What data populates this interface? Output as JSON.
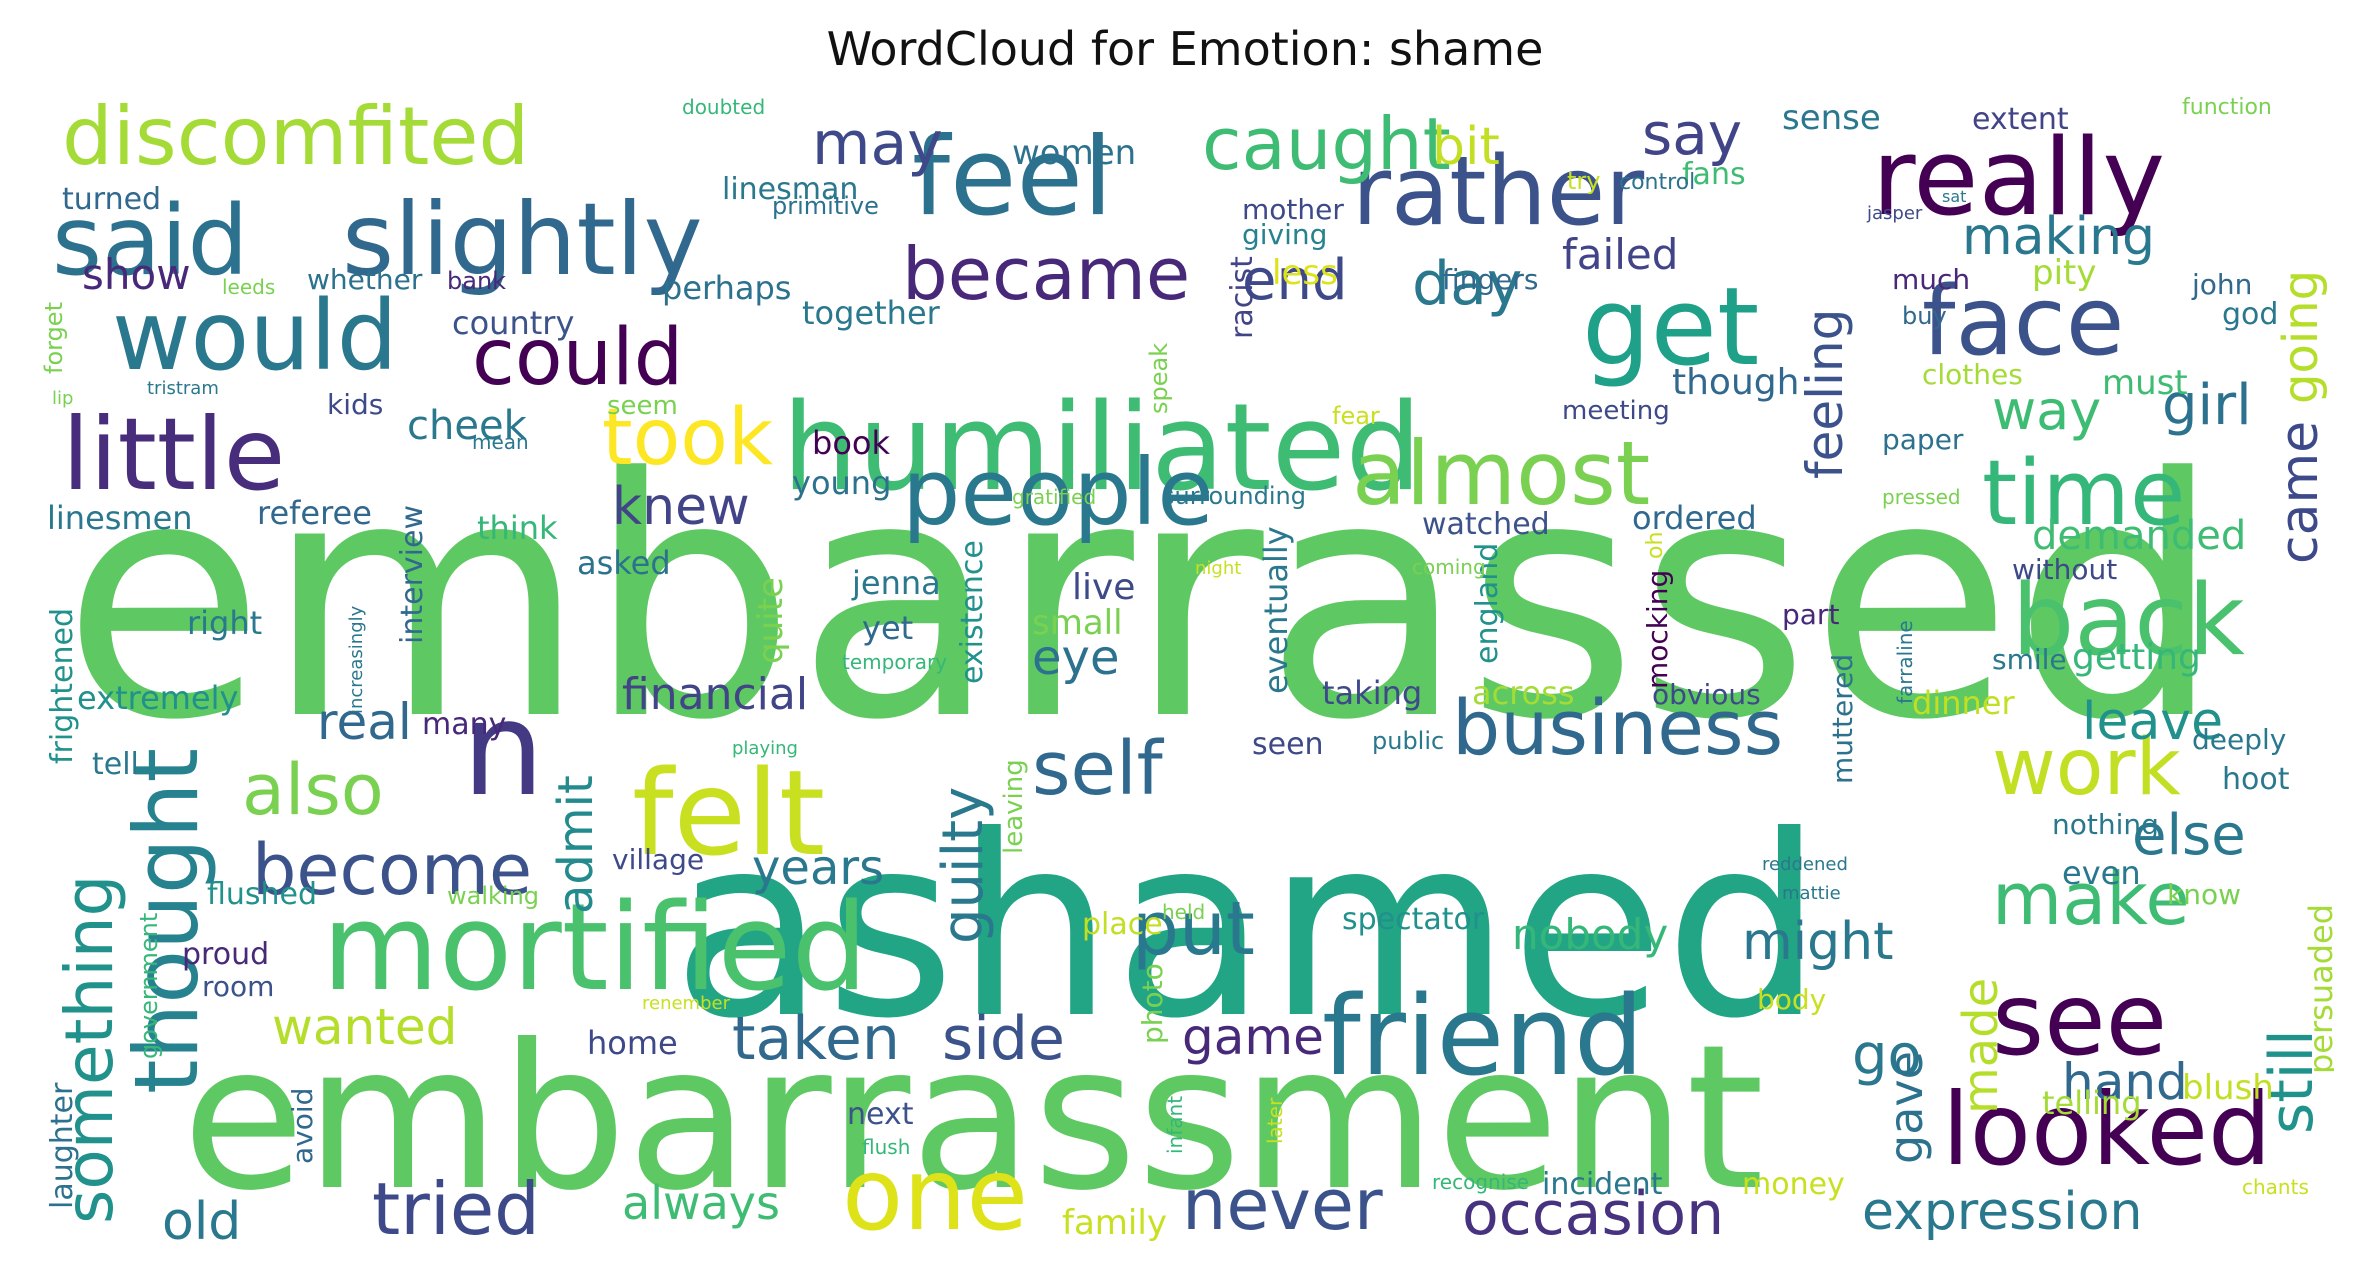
{
  "title": "WordCloud for Emotion: shame",
  "palette": "viridis",
  "words": [
    {
      "text": "embarrassed",
      "color": "#5ec962"
    },
    {
      "text": "ashamed",
      "color": "#21a585"
    },
    {
      "text": "embarrassment",
      "color": "#5ec962"
    },
    {
      "text": "humiliated",
      "color": "#3fbc73"
    },
    {
      "text": "mortified",
      "color": "#4ac16d"
    },
    {
      "text": "felt",
      "color": "#c8e020"
    },
    {
      "text": "friend",
      "color": "#2a788e"
    },
    {
      "text": "slightly",
      "color": "#31688e"
    },
    {
      "text": "feel",
      "color": "#2c728e"
    },
    {
      "text": "really",
      "color": "#440154"
    },
    {
      "text": "said",
      "color": "#2c728e"
    },
    {
      "text": "rather",
      "color": "#3b528b"
    },
    {
      "text": "discomfited",
      "color": "#a5db36"
    },
    {
      "text": "would",
      "color": "#2a788e"
    },
    {
      "text": "get",
      "color": "#1fa088"
    },
    {
      "text": "face",
      "color": "#3b528b"
    },
    {
      "text": "people",
      "color": "#2a788e"
    },
    {
      "text": "little",
      "color": "#472d7b"
    },
    {
      "text": "almost",
      "color": "#7ad151"
    },
    {
      "text": "time",
      "color": "#35b779"
    },
    {
      "text": "back",
      "color": "#4ac16d"
    },
    {
      "text": "one",
      "color": "#dde318"
    },
    {
      "text": "n",
      "color": "#443983"
    },
    {
      "text": "see",
      "color": "#440154"
    },
    {
      "text": "looked",
      "color": "#440154"
    },
    {
      "text": "business",
      "color": "#31688e"
    },
    {
      "text": "thought",
      "color": "#26828e"
    },
    {
      "text": "could",
      "color": "#440154"
    },
    {
      "text": "took",
      "color": "#fde725"
    },
    {
      "text": "became",
      "color": "#482878"
    },
    {
      "text": "caught",
      "color": "#3fbc73"
    },
    {
      "text": "self",
      "color": "#31688e"
    },
    {
      "text": "work",
      "color": "#c2df23"
    },
    {
      "text": "put",
      "color": "#2a788e"
    },
    {
      "text": "make",
      "color": "#3fbc73"
    },
    {
      "text": "tried",
      "color": "#3e4989"
    },
    {
      "text": "never",
      "color": "#3b528b"
    },
    {
      "text": "become",
      "color": "#3b528b"
    },
    {
      "text": "something",
      "color": "#21918c"
    },
    {
      "text": "also",
      "color": "#7ad151"
    },
    {
      "text": "feeling",
      "color": "#3b528b"
    },
    {
      "text": "occasion",
      "color": "#46327e"
    },
    {
      "text": "taken",
      "color": "#31688e"
    },
    {
      "text": "side",
      "color": "#3b528b"
    },
    {
      "text": "expression",
      "color": "#2a788e"
    },
    {
      "text": "still",
      "color": "#21918c"
    },
    {
      "text": "may",
      "color": "#3e4989"
    },
    {
      "text": "say",
      "color": "#414487"
    },
    {
      "text": "day",
      "color": "#2a788e"
    },
    {
      "text": "end",
      "color": "#3e4989"
    },
    {
      "text": "making",
      "color": "#2a788e"
    },
    {
      "text": "knew",
      "color": "#414487"
    },
    {
      "text": "girl",
      "color": "#2c728e"
    },
    {
      "text": "way",
      "color": "#3fbc73"
    },
    {
      "text": "came",
      "color": "#3e4989"
    },
    {
      "text": "going",
      "color": "#b5de2b"
    },
    {
      "text": "bit",
      "color": "#c2df23"
    },
    {
      "text": "show",
      "color": "#482878"
    },
    {
      "text": "real",
      "color": "#31688e"
    },
    {
      "text": "guilty",
      "color": "#2a788e"
    },
    {
      "text": "admit",
      "color": "#238a8d"
    },
    {
      "text": "eye",
      "color": "#2c728e"
    },
    {
      "text": "else",
      "color": "#2a788e"
    },
    {
      "text": "leave",
      "color": "#21918c"
    },
    {
      "text": "might",
      "color": "#2a788e"
    },
    {
      "text": "go",
      "color": "#2a788e"
    },
    {
      "text": "hand",
      "color": "#31688e"
    },
    {
      "text": "made",
      "color": "#b5de2b"
    },
    {
      "text": "gave",
      "color": "#2c728e"
    },
    {
      "text": "game",
      "color": "#482878"
    },
    {
      "text": "old",
      "color": "#2a788e"
    },
    {
      "text": "always",
      "color": "#3fbc73"
    },
    {
      "text": "years",
      "color": "#2a788e"
    },
    {
      "text": "wanted",
      "color": "#b5de2b"
    },
    {
      "text": "financial",
      "color": "#414487"
    },
    {
      "text": "failed",
      "color": "#414487"
    },
    {
      "text": "cheek",
      "color": "#2a788e"
    },
    {
      "text": "nobody",
      "color": "#35b779"
    },
    {
      "text": "demanded",
      "color": "#3fbc73"
    },
    {
      "text": "women",
      "color": "#2c728e"
    },
    {
      "text": "sense",
      "color": "#2a788e"
    },
    {
      "text": "extent",
      "color": "#414487"
    },
    {
      "text": "fans",
      "color": "#3fbc73"
    },
    {
      "text": "linesman",
      "color": "#2a788e"
    },
    {
      "text": "turned",
      "color": "#31688e"
    },
    {
      "text": "primitive",
      "color": "#2c728e"
    },
    {
      "text": "mother",
      "color": "#3e4989"
    },
    {
      "text": "giving",
      "color": "#26828e"
    },
    {
      "text": "less",
      "color": "#dde318"
    },
    {
      "text": "racist",
      "color": "#414487"
    },
    {
      "text": "fingers",
      "color": "#31688e"
    },
    {
      "text": "much",
      "color": "#482878"
    },
    {
      "text": "pity",
      "color": "#a5db36"
    },
    {
      "text": "john",
      "color": "#31688e"
    },
    {
      "text": "god",
      "color": "#2a788e"
    },
    {
      "text": "whether",
      "color": "#2c728e"
    },
    {
      "text": "bank",
      "color": "#482878"
    },
    {
      "text": "perhaps",
      "color": "#2c728e"
    },
    {
      "text": "together",
      "color": "#2a788e"
    },
    {
      "text": "country",
      "color": "#3b528b"
    },
    {
      "text": "though",
      "color": "#31688e"
    },
    {
      "text": "must",
      "color": "#3fbc73"
    },
    {
      "text": "clothes",
      "color": "#a5db36"
    },
    {
      "text": "buy",
      "color": "#31688e"
    },
    {
      "text": "seem",
      "color": "#7ad151"
    },
    {
      "text": "kids",
      "color": "#3e4989"
    },
    {
      "text": "book",
      "color": "#440154"
    },
    {
      "text": "young",
      "color": "#2c728e"
    },
    {
      "text": "referee",
      "color": "#31688e"
    },
    {
      "text": "linesmen",
      "color": "#2a788e"
    },
    {
      "text": "think",
      "color": "#35b779"
    },
    {
      "text": "watched",
      "color": "#3b528b"
    },
    {
      "text": "ordered",
      "color": "#31688e"
    },
    {
      "text": "meeting",
      "color": "#3e4989"
    },
    {
      "text": "paper",
      "color": "#2c728e"
    },
    {
      "text": "surrounding",
      "color": "#2a788e"
    },
    {
      "text": "asked",
      "color": "#2c728e"
    },
    {
      "text": "jenna",
      "color": "#2a788e"
    },
    {
      "text": "live",
      "color": "#3e4989"
    },
    {
      "text": "quite",
      "color": "#7ad151"
    },
    {
      "text": "existence",
      "color": "#21918c"
    },
    {
      "text": "eventually",
      "color": "#2a788e"
    },
    {
      "text": "england",
      "color": "#21918c"
    },
    {
      "text": "mocking",
      "color": "#440154"
    },
    {
      "text": "without",
      "color": "#3e4989"
    },
    {
      "text": "part",
      "color": "#482878"
    },
    {
      "text": "smile",
      "color": "#2a788e"
    },
    {
      "text": "getting",
      "color": "#35b779"
    },
    {
      "text": "right",
      "color": "#2a788e"
    },
    {
      "text": "interview",
      "color": "#31688e"
    },
    {
      "text": "yet",
      "color": "#31688e"
    },
    {
      "text": "small",
      "color": "#7ad151"
    },
    {
      "text": "across",
      "color": "#a5db36"
    },
    {
      "text": "taking",
      "color": "#3e4989"
    },
    {
      "text": "obvious",
      "color": "#3e4989"
    },
    {
      "text": "extremely",
      "color": "#21918c"
    },
    {
      "text": "many",
      "color": "#482878"
    },
    {
      "text": "muttered",
      "color": "#2c728e"
    },
    {
      "text": "dinner",
      "color": "#c2df23"
    },
    {
      "text": "deeply",
      "color": "#2a788e"
    },
    {
      "text": "tell",
      "color": "#2a788e"
    },
    {
      "text": "seen",
      "color": "#3e4989"
    },
    {
      "text": "public",
      "color": "#2a788e"
    },
    {
      "text": "hoot",
      "color": "#2a788e"
    },
    {
      "text": "frightened",
      "color": "#21918c"
    },
    {
      "text": "village",
      "color": "#3e4989"
    },
    {
      "text": "leaving",
      "color": "#7ad151"
    },
    {
      "text": "nothing",
      "color": "#2a788e"
    },
    {
      "text": "even",
      "color": "#2a788e"
    },
    {
      "text": "flushed",
      "color": "#21918c"
    },
    {
      "text": "walking",
      "color": "#7ad151"
    },
    {
      "text": "spectator",
      "color": "#21918c"
    },
    {
      "text": "know",
      "color": "#7ad151"
    },
    {
      "text": "persuaded",
      "color": "#a5db36"
    },
    {
      "text": "proud",
      "color": "#482878"
    },
    {
      "text": "room",
      "color": "#3b528b"
    },
    {
      "text": "place",
      "color": "#c2df23"
    },
    {
      "text": "photo",
      "color": "#7ad151"
    },
    {
      "text": "body",
      "color": "#c8e020"
    },
    {
      "text": "home",
      "color": "#3e4989"
    },
    {
      "text": "government",
      "color": "#35b779"
    },
    {
      "text": "laughter",
      "color": "#2c728e"
    },
    {
      "text": "avoid",
      "color": "#31688e"
    },
    {
      "text": "next",
      "color": "#3b528b"
    },
    {
      "text": "telling",
      "color": "#a5db36"
    },
    {
      "text": "blush",
      "color": "#c2df23"
    },
    {
      "text": "money",
      "color": "#c8e020"
    },
    {
      "text": "incident",
      "color": "#2a788e"
    },
    {
      "text": "family",
      "color": "#c8e020"
    },
    {
      "text": "later",
      "color": "#c8e020"
    },
    {
      "text": "infant",
      "color": "#35b779"
    },
    {
      "text": "flush",
      "color": "#35b779"
    },
    {
      "text": "recognise",
      "color": "#35b779"
    },
    {
      "text": "chants",
      "color": "#c8e020"
    },
    {
      "text": "doubted",
      "color": "#35b779"
    },
    {
      "text": "function",
      "color": "#7ad151"
    },
    {
      "text": "try",
      "color": "#c8e020"
    },
    {
      "text": "control",
      "color": "#2c728e"
    },
    {
      "text": "jasper",
      "color": "#3e4989"
    },
    {
      "text": "sat",
      "color": "#2a788e"
    },
    {
      "text": "leeds",
      "color": "#7ad151"
    },
    {
      "text": "forget",
      "color": "#7ad151"
    },
    {
      "text": "lip",
      "color": "#7ad151"
    },
    {
      "text": "tristram",
      "color": "#2a788e"
    },
    {
      "text": "speak",
      "color": "#7ad151"
    },
    {
      "text": "fear",
      "color": "#c8e020"
    },
    {
      "text": "mean",
      "color": "#2a788e"
    },
    {
      "text": "gratified",
      "color": "#7ad151"
    },
    {
      "text": "pressed",
      "color": "#7ad151"
    },
    {
      "text": "coming",
      "color": "#7ad151"
    },
    {
      "text": "night",
      "color": "#c8e020"
    },
    {
      "text": "oh",
      "color": "#c8e020"
    },
    {
      "text": "farraline",
      "color": "#2a788e"
    },
    {
      "text": "increasingly",
      "color": "#2a788e"
    },
    {
      "text": "temporary",
      "color": "#35b779"
    },
    {
      "text": "playing",
      "color": "#35b779"
    },
    {
      "text": "reddened",
      "color": "#2a788e"
    },
    {
      "text": "mattie",
      "color": "#2a788e"
    },
    {
      "text": "held",
      "color": "#7ad151"
    },
    {
      "text": "renember",
      "color": "#c8e020"
    }
  ]
}
